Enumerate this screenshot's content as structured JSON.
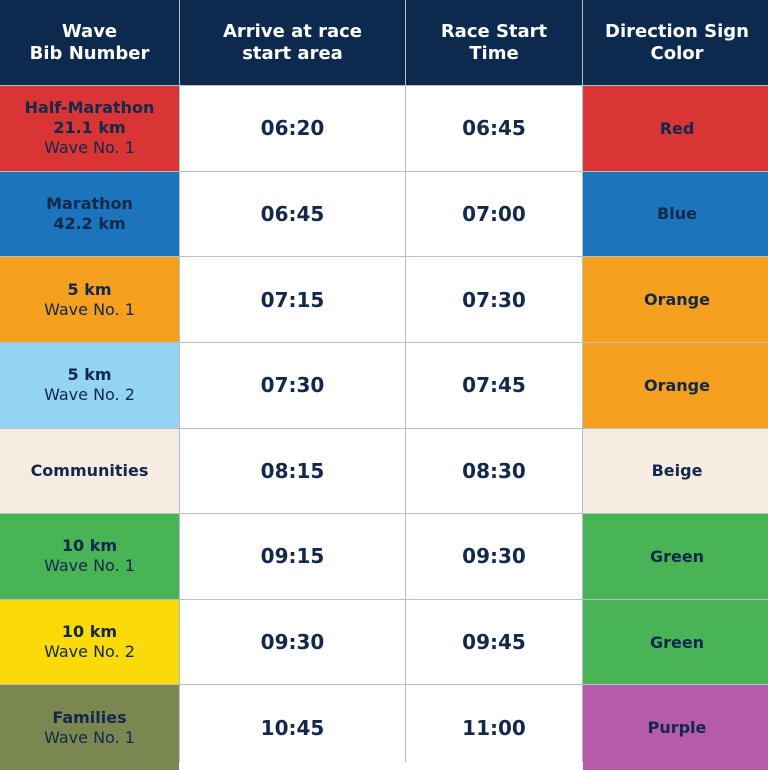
{
  "header": {
    "bib": [
      "Wave",
      "Bib Number"
    ],
    "arrive": [
      "Arrive at race",
      "start area"
    ],
    "start": [
      "Race Start",
      "Time"
    ],
    "sign": [
      "Direction Sign",
      "Color"
    ]
  },
  "rows": [
    {
      "bib": [
        "Half-Marathon",
        "21.1 km",
        "Wave No. 1"
      ],
      "bib_color": "#d93535",
      "arrive": "06:20",
      "start": "06:45",
      "sign": "Red",
      "sign_color": "#d93535"
    },
    {
      "bib": [
        "Marathon",
        "42.2 km"
      ],
      "bib_color": "#1c75bc",
      "arrive": "06:45",
      "start": "07:00",
      "sign": "Blue",
      "sign_color": "#1c75bc"
    },
    {
      "bib": [
        "5 km",
        "Wave No. 1"
      ],
      "bib_color": "#f5a01e",
      "arrive": "07:15",
      "start": "07:30",
      "sign": "Orange",
      "sign_color": "#f5a01e"
    },
    {
      "bib": [
        "5 km",
        "Wave No. 2"
      ],
      "bib_color": "#93d4f3",
      "arrive": "07:30",
      "start": "07:45",
      "sign": "Orange",
      "sign_color": "#f5a01e"
    },
    {
      "bib": [
        "Communities"
      ],
      "bib_color": "#f6ece2",
      "arrive": "08:15",
      "start": "08:30",
      "sign": "Beige",
      "sign_color": "#f6ece2"
    },
    {
      "bib": [
        "10 km",
        "Wave No. 1"
      ],
      "bib_color": "#49b456",
      "arrive": "09:15",
      "start": "09:30",
      "sign": "Green",
      "sign_color": "#49b456"
    },
    {
      "bib": [
        "10 km",
        "Wave No. 2"
      ],
      "bib_color": "#fbdb07",
      "arrive": "09:30",
      "start": "09:45",
      "sign": "Green",
      "sign_color": "#49b456"
    },
    {
      "bib": [
        "Families",
        "Wave No. 1"
      ],
      "bib_color": "#7a8750",
      "arrive": "10:45",
      "start": "11:00",
      "sign": "Purple",
      "sign_color": "#b65ba7"
    }
  ]
}
